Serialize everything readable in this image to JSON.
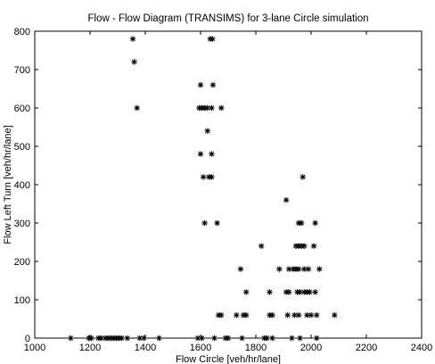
{
  "chart_data": {
    "type": "scatter",
    "title": "Flow - Flow Diagram (TRANSIMS) for 3-lane Circle simulation",
    "xlabel": "Flow Circle [veh/hr/lane]",
    "ylabel": "Flow Left Turn [veh/hr/lane]",
    "xlim": [
      1000,
      2400
    ],
    "ylim": [
      0,
      800
    ],
    "x_ticks": [
      1000,
      1200,
      1400,
      1600,
      1800,
      2000,
      2200,
      2400
    ],
    "y_ticks": [
      0,
      100,
      200,
      300,
      400,
      500,
      600,
      700,
      800
    ],
    "grid": false,
    "marker": "asterisk",
    "color": "#000000",
    "series": [
      {
        "points": [
          [
            1355,
            780
          ],
          [
            1360,
            720
          ],
          [
            1370,
            600
          ],
          [
            1635,
            780
          ],
          [
            1643,
            780
          ],
          [
            1600,
            660
          ],
          [
            1645,
            660
          ],
          [
            1595,
            600
          ],
          [
            1605,
            600
          ],
          [
            1615,
            600
          ],
          [
            1625,
            600
          ],
          [
            1640,
            600
          ],
          [
            1675,
            600
          ],
          [
            1625,
            540
          ],
          [
            1600,
            480
          ],
          [
            1640,
            480
          ],
          [
            1610,
            420
          ],
          [
            1630,
            420
          ],
          [
            1640,
            420
          ],
          [
            1970,
            420
          ],
          [
            1910,
            360
          ],
          [
            1615,
            300
          ],
          [
            1660,
            300
          ],
          [
            1955,
            300
          ],
          [
            1965,
            300
          ],
          [
            2015,
            300
          ],
          [
            1820,
            240
          ],
          [
            1945,
            240
          ],
          [
            1955,
            240
          ],
          [
            1965,
            240
          ],
          [
            1975,
            240
          ],
          [
            2010,
            240
          ],
          [
            1745,
            180
          ],
          [
            1885,
            180
          ],
          [
            1920,
            180
          ],
          [
            1935,
            180
          ],
          [
            1945,
            180
          ],
          [
            1955,
            180
          ],
          [
            1975,
            180
          ],
          [
            1990,
            180
          ],
          [
            2030,
            180
          ],
          [
            1765,
            120
          ],
          [
            1850,
            120
          ],
          [
            1910,
            120
          ],
          [
            1920,
            120
          ],
          [
            1950,
            120
          ],
          [
            1960,
            120
          ],
          [
            1975,
            120
          ],
          [
            1985,
            120
          ],
          [
            1995,
            120
          ],
          [
            2015,
            120
          ],
          [
            1665,
            60
          ],
          [
            1675,
            60
          ],
          [
            1730,
            60
          ],
          [
            1755,
            60
          ],
          [
            1765,
            60
          ],
          [
            1850,
            60
          ],
          [
            1860,
            60
          ],
          [
            1915,
            60
          ],
          [
            1940,
            60
          ],
          [
            1955,
            60
          ],
          [
            1985,
            60
          ],
          [
            2000,
            60
          ],
          [
            2020,
            60
          ],
          [
            2085,
            60
          ],
          [
            1130,
            0
          ],
          [
            1195,
            0
          ],
          [
            1205,
            0
          ],
          [
            1230,
            0
          ],
          [
            1240,
            0
          ],
          [
            1255,
            0
          ],
          [
            1265,
            0
          ],
          [
            1275,
            0
          ],
          [
            1285,
            0
          ],
          [
            1295,
            0
          ],
          [
            1305,
            0
          ],
          [
            1315,
            0
          ],
          [
            1335,
            0
          ],
          [
            1380,
            0
          ],
          [
            1395,
            0
          ],
          [
            1450,
            0
          ],
          [
            1590,
            0
          ],
          [
            1605,
            0
          ],
          [
            1650,
            0
          ],
          [
            1690,
            0
          ],
          [
            1700,
            0
          ],
          [
            1750,
            0
          ],
          [
            1830,
            0
          ],
          [
            1840,
            0
          ],
          [
            1860,
            0
          ],
          [
            1930,
            0
          ],
          [
            1960,
            0
          ],
          [
            2020,
            0
          ]
        ]
      }
    ]
  }
}
